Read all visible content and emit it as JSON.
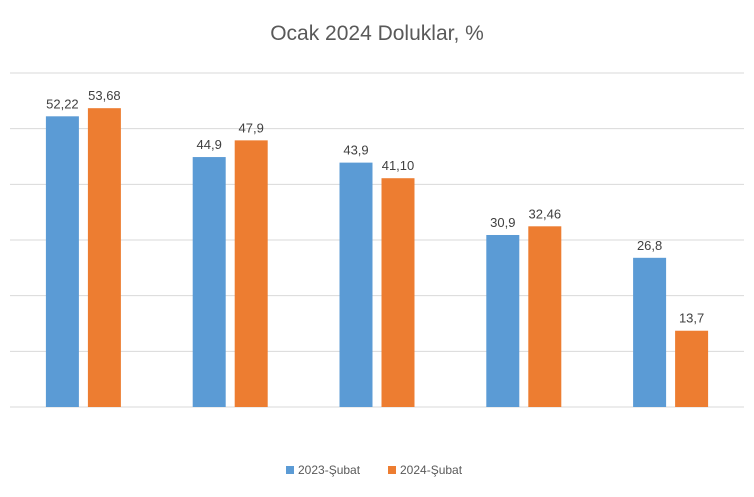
{
  "chart_data": {
    "type": "bar",
    "title": "Ocak 2024 Doluklar, %",
    "categories": [
      "",
      "",
      "",
      "",
      ""
    ],
    "series": [
      {
        "name": "2023-Şubat",
        "color": "#5b9bd5",
        "values": [
          52.22,
          44.9,
          43.9,
          30.9,
          26.8
        ],
        "labels": [
          "52,22",
          "44,9",
          "43,9",
          "30,9",
          "26,8"
        ]
      },
      {
        "name": "2024-Şubat",
        "color": "#ed7d31",
        "values": [
          53.68,
          47.9,
          41.1,
          32.46,
          13.7
        ],
        "labels": [
          "53,68",
          "47,9",
          "41,10",
          "32,46",
          "13,7"
        ]
      }
    ],
    "ylim": [
      0,
      60
    ],
    "ytick_step": 10,
    "grid": true,
    "show_y_tick_labels": false,
    "legend_position": "bottom"
  }
}
